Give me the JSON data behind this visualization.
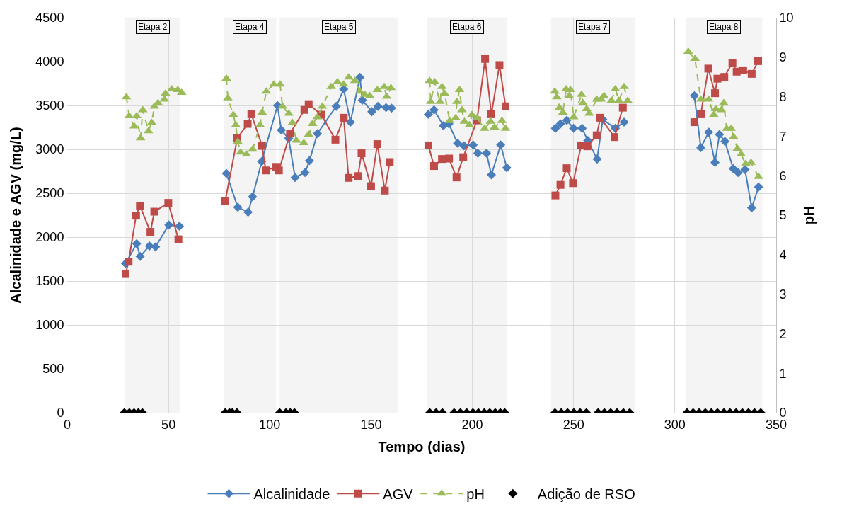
{
  "chart_data": {
    "type": "line",
    "xlabel": "Tempo (dias)",
    "ylabel": "Alcalinidade e AGV (mg/L)",
    "y2label": "pH",
    "xlim": [
      0,
      350
    ],
    "xticks": [
      0,
      50,
      100,
      150,
      200,
      250,
      300,
      350
    ],
    "ylim": [
      0,
      4500
    ],
    "yticks": [
      0,
      500,
      1000,
      1500,
      2000,
      2500,
      3000,
      3500,
      4000,
      4500
    ],
    "y2lim": [
      0,
      10
    ],
    "y2ticks": [
      0,
      1,
      2,
      3,
      4,
      5,
      6,
      7,
      8,
      9,
      10
    ],
    "grid": true,
    "legend": "bottom",
    "bands": [
      {
        "axis": "x",
        "from": 28.8,
        "to": 55.4,
        "label": "Etapa 2"
      },
      {
        "axis": "x",
        "from": 77.5,
        "to": 103,
        "label": "Etapa 4"
      },
      {
        "axis": "x",
        "from": 105,
        "to": 163,
        "label": "Etapa 5"
      },
      {
        "axis": "x",
        "from": 178,
        "to": 217,
        "label": "Etapa 6"
      },
      {
        "axis": "x",
        "from": 239,
        "to": 280,
        "label": "Etapa 7"
      },
      {
        "axis": "x",
        "from": 305.6,
        "to": 343,
        "label": "Etapa 8"
      }
    ],
    "series": [
      {
        "name": "Alcalinidade",
        "marker": "diamond",
        "line_style": "solid",
        "color": "#4a7ebb",
        "x": [
          28.8,
          34.3,
          36,
          40.6,
          43.6,
          50.2,
          55.4,
          65,
          78.6,
          84.2,
          89.3,
          91.5,
          96,
          103.8,
          105.7,
          109.3,
          112.5,
          117.4,
          119.6,
          123.5,
          132.8,
          136.5,
          139.8,
          144.5,
          145.7,
          150.4,
          153.4,
          157.4,
          160.1,
          170,
          178.3,
          181.1,
          185.7,
          188.4,
          192.7,
          195.9,
          200.4,
          202.7,
          207,
          209.4,
          214,
          217,
          230,
          241,
          243.5,
          246.6,
          250,
          254.2,
          257,
          261.6,
          264.4,
          270.6,
          274.9,
          290,
          309.6,
          312.8,
          316.7,
          319.8,
          322,
          324.7,
          328.8,
          331.2,
          334.6,
          337.9,
          341.3
        ],
        "values": [
          1700,
          1925,
          1780,
          1900,
          1890,
          2140,
          2125,
          null,
          2725,
          2340,
          2285,
          2460,
          2860,
          3500,
          3220,
          3125,
          2680,
          2735,
          2870,
          3180,
          3490,
          3685,
          3310,
          3820,
          3560,
          3430,
          3490,
          3475,
          3470,
          null,
          3400,
          3450,
          3270,
          3290,
          3070,
          3040,
          3050,
          2955,
          2955,
          2710,
          3050,
          2790,
          null,
          3240,
          3290,
          3330,
          3240,
          3240,
          3100,
          2890,
          3340,
          3240,
          3310,
          null,
          3610,
          3020,
          3195,
          2850,
          3170,
          3090,
          2780,
          2735,
          2770,
          2335,
          2570
        ]
      },
      {
        "name": "AGV",
        "marker": "square",
        "line_style": "solid",
        "color": "#be4b48",
        "x": [
          28.8,
          30.3,
          34,
          35.9,
          41.1,
          43,
          49.9,
          54.9,
          65,
          78,
          84,
          89.1,
          90.9,
          96.2,
          98,
          103.2,
          104.5,
          110,
          117.1,
          119.2,
          125.4,
          132.4,
          136.5,
          138.9,
          143.5,
          145.3,
          150,
          153.1,
          156.8,
          159.2,
          170,
          178.3,
          181.1,
          185,
          188.5,
          192.2,
          195.5,
          202.3,
          206.3,
          209.4,
          213.4,
          216.4,
          230,
          241,
          243.5,
          246.6,
          249.7,
          253.7,
          256.8,
          261.4,
          263.2,
          270.2,
          274.3,
          290,
          309.6,
          312.8,
          316.5,
          319.8,
          321,
          324.4,
          328.4,
          330.5,
          333.7,
          337.9,
          341.1
        ],
        "values": [
          1580,
          1720,
          2245,
          2355,
          2060,
          2290,
          2390,
          1975,
          null,
          2410,
          3130,
          3290,
          3400,
          3040,
          2760,
          2800,
          2760,
          3180,
          3450,
          3515,
          3395,
          3110,
          3360,
          2675,
          2695,
          2955,
          2580,
          3060,
          2530,
          2855,
          null,
          3045,
          2810,
          2890,
          2895,
          2680,
          2910,
          3330,
          4030,
          3400,
          3960,
          3490,
          null,
          2475,
          2595,
          2785,
          2615,
          3045,
          3035,
          3160,
          3360,
          3140,
          3475,
          null,
          3310,
          3400,
          3920,
          3640,
          3805,
          3825,
          3985,
          3885,
          3900,
          3860,
          4005
        ]
      },
      {
        "name": "pH",
        "marker": "triangle",
        "line_style": "dashed",
        "color": "#9bbb59",
        "axis": "y2",
        "x": [
          29.2,
          30.6,
          33.1,
          34.3,
          36.2,
          37.3,
          40.1,
          41.7,
          43,
          44.8,
          47.9,
          48.5,
          51.6,
          54.6,
          56.5,
          65,
          78.6,
          79.3,
          82,
          83.2,
          84.2,
          85.6,
          88.5,
          91.5,
          95.2,
          96.2,
          98.3,
          102,
          105.1,
          106.3,
          109.4,
          111.2,
          113.1,
          116.8,
          119.2,
          121.1,
          123.5,
          126,
          130.3,
          133.4,
          136.5,
          139,
          142,
          144.5,
          146.9,
          149.4,
          153.1,
          156.5,
          157.7,
          159.8,
          170,
          178.9,
          179.5,
          181.4,
          184,
          185,
          186.3,
          188.8,
          191.8,
          192.4,
          193.7,
          194.9,
          196.1,
          198.6,
          199.8,
          202.3,
          206,
          209,
          210.9,
          214.6,
          216.4,
          230,
          240.7,
          241.7,
          243,
          244.7,
          246.3,
          247.8,
          248.4,
          250,
          253.9,
          254.6,
          256.4,
          257.7,
          261.4,
          263.6,
          265,
          268.7,
          270.6,
          272.4,
          274.9,
          276.7,
          290,
          306.6,
          309.9,
          312.8,
          316.7,
          319.2,
          320.2,
          322.9,
          324.1,
          325.6,
          327.8,
          329,
          330.9,
          332.7,
          334.9,
          337.6,
          341.3
        ],
        "values": [
          7.99,
          7.51,
          7.25,
          7.51,
          6.95,
          7.66,
          7.13,
          7.34,
          7.75,
          7.84,
          7.93,
          8.08,
          8.19,
          8.17,
          8.1,
          null,
          8.46,
          7.96,
          7.54,
          7.28,
          6.86,
          6.59,
          6.54,
          6.66,
          7.28,
          7.6,
          8.13,
          8.31,
          8.31,
          7.75,
          7.57,
          7.34,
          6.89,
          6.83,
          7.04,
          7.31,
          7.48,
          7.75,
          8.25,
          8.37,
          8.31,
          8.49,
          8.4,
          8.13,
          8.05,
          8.02,
          8.17,
          8.25,
          8.0,
          8.22,
          null,
          8.4,
          7.87,
          8.37,
          7.87,
          8.25,
          8.08,
          7.39,
          7.46,
          7.87,
          8.17,
          7.66,
          7.37,
          7.28,
          7.54,
          7.46,
          7.19,
          7.37,
          7.22,
          7.39,
          7.19,
          null,
          8.13,
          7.99,
          7.72,
          7.6,
          8.19,
          8.02,
          8.17,
          7.48,
          8.05,
          7.84,
          7.69,
          7.57,
          7.93,
          7.93,
          8.02,
          7.9,
          8.19,
          7.9,
          8.25,
          7.9,
          null,
          9.14,
          8.96,
          7.93,
          7.93,
          7.54,
          7.69,
          7.66,
          7.84,
          7.19,
          7.19,
          6.98,
          6.68,
          6.54,
          6.3,
          6.33,
          5.97
        ]
      },
      {
        "name": "Adição de RSO",
        "type": "scatter",
        "marker": "diamond",
        "color": "#000000",
        "x": [
          28.2,
          30.7,
          33,
          35.1,
          37.1,
          78,
          80.1,
          81.5,
          83.8,
          104.9,
          108,
          110.1,
          112.2,
          179,
          182.1,
          185.2,
          191,
          194.1,
          197.2,
          200.3,
          203,
          205.9,
          208.6,
          211.3,
          213.8,
          216,
          240.8,
          243.9,
          247,
          250.1,
          253.2,
          256.3,
          262.1,
          265.2,
          268.3,
          271.4,
          274.6,
          277.7,
          306,
          309,
          312,
          315,
          318,
          321,
          324.2,
          327.2,
          330.2,
          333.3,
          336.3,
          339.3,
          342.4
        ],
        "values": [
          0,
          0,
          0,
          0,
          0,
          0,
          0,
          0,
          0,
          0,
          0,
          0,
          0,
          0,
          0,
          0,
          0,
          0,
          0,
          0,
          0,
          0,
          0,
          0,
          0,
          0,
          0,
          0,
          0,
          0,
          0,
          0,
          0,
          0,
          0,
          0,
          0,
          0,
          0,
          0,
          0,
          0,
          0,
          0,
          0,
          0,
          0,
          0,
          0,
          0,
          0
        ]
      }
    ]
  }
}
